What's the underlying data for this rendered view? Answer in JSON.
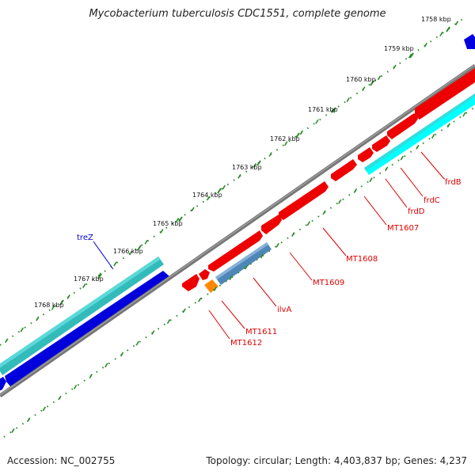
{
  "title": "Mycobacterium tuberculosis CDC1551, complete genome",
  "accession": "Accession: NC_002755",
  "summary": "Topology: circular; Length: 4,403,837 bp; Genes: 4,237",
  "scale_labels": [
    "1758 kbp",
    "1759 kbp",
    "1760 kbp",
    "1761 kbp",
    "1762 kbp",
    "1763 kbp",
    "1764 kbp",
    "1765 kbp",
    "1766 kbp",
    "1767 kbp",
    "1768 kbp"
  ],
  "genes": [
    {
      "name": "treZ",
      "color": "#0000cc"
    },
    {
      "name": "frdB",
      "color": "#dd0000"
    },
    {
      "name": "frdC",
      "color": "#dd0000"
    },
    {
      "name": "frdD",
      "color": "#dd0000"
    },
    {
      "name": "MT1607",
      "color": "#dd0000"
    },
    {
      "name": "MT1608",
      "color": "#dd0000"
    },
    {
      "name": "MT1609",
      "color": "#dd0000"
    },
    {
      "name": "ilvA",
      "color": "#dd0000"
    },
    {
      "name": "MT1611",
      "color": "#dd0000"
    },
    {
      "name": "MT1612",
      "color": "#dd0000"
    }
  ],
  "colors": {
    "backbone": "#808080",
    "dots": "#2a8a2a",
    "forward_cds": "#0000dd",
    "reverse_cds": "#ee0000",
    "rna_track": "#33cccc",
    "ilvA_block": "#4f86b8",
    "orange_block": "#ff8800"
  }
}
